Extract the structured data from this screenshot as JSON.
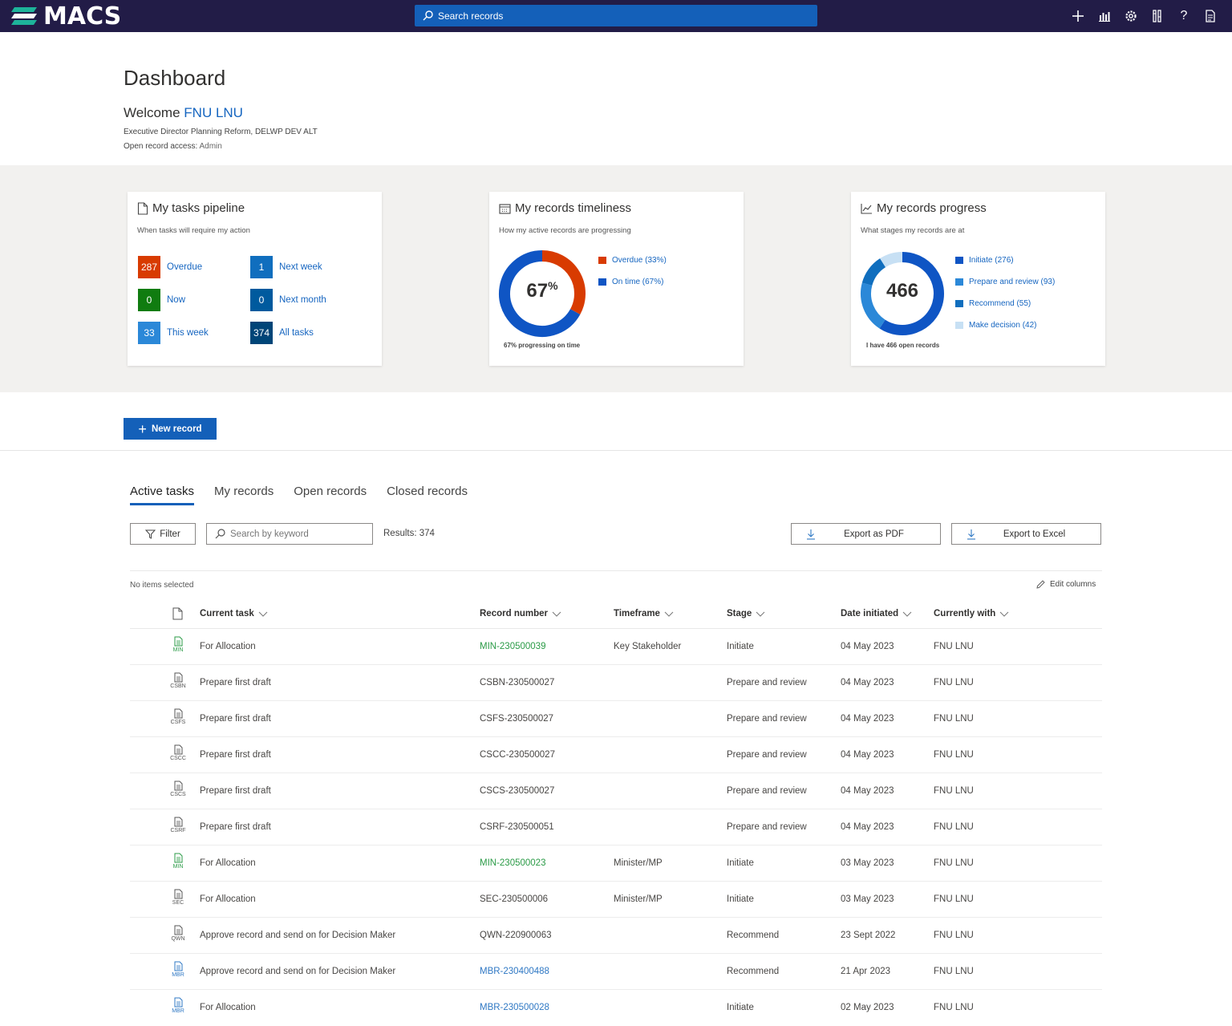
{
  "app": {
    "name": "MACS",
    "search_placeholder": "Search records"
  },
  "topbar_icons": [
    "plus-icon",
    "chart-icon",
    "gear-icon",
    "tools-icon",
    "help-icon",
    "report-icon"
  ],
  "header": {
    "title": "Dashboard",
    "welcome_prefix": "Welcome",
    "user_name": "FNU LNU",
    "role": "Executive Director Planning Reform, DELWP DEV ALT",
    "access_label": "Open record access:",
    "access_value": "Admin"
  },
  "cards": {
    "pipeline": {
      "title": "My tasks pipeline",
      "subtitle": "When tasks will require my action",
      "items": [
        {
          "count": "287",
          "label": "Overdue",
          "color": "#d83b01"
        },
        {
          "count": "0",
          "label": "Now",
          "color": "#107c10"
        },
        {
          "count": "33",
          "label": "This week",
          "color": "#2b88d8"
        },
        {
          "count": "1",
          "label": "Next week",
          "color": "#106ebe"
        },
        {
          "count": "0",
          "label": "Next month",
          "color": "#005a9e"
        },
        {
          "count": "374",
          "label": "All tasks",
          "color": "#004578"
        }
      ]
    },
    "timeliness": {
      "title": "My records timeliness",
      "subtitle": "How my active records are progressing",
      "center_value": "67",
      "center_unit": "%",
      "caption": "67% progressing on time",
      "legend": [
        {
          "label": "Overdue (33%)",
          "color": "#d83b01"
        },
        {
          "label": "On time (67%)",
          "color": "#0f55c4"
        }
      ]
    },
    "progress": {
      "title": "My records progress",
      "subtitle": "What stages my records are at",
      "center_value": "466",
      "caption": "I have 466 open records",
      "legend": [
        {
          "label": "Initiate (276)",
          "color": "#0f55c4"
        },
        {
          "label": "Prepare and review (93)",
          "color": "#2b88d8"
        },
        {
          "label": "Recommend (55)",
          "color": "#106ebe"
        },
        {
          "label": "Make decision (42)",
          "color": "#c7e0f4"
        }
      ]
    }
  },
  "chart_data": [
    {
      "type": "pie",
      "title": "My records timeliness",
      "categories": [
        "Overdue",
        "On time"
      ],
      "values": [
        33,
        67
      ]
    },
    {
      "type": "pie",
      "title": "My records progress",
      "categories": [
        "Initiate",
        "Prepare and review",
        "Recommend",
        "Make decision"
      ],
      "values": [
        276,
        93,
        55,
        42
      ]
    }
  ],
  "actions": {
    "new_record": "New record"
  },
  "tabs": [
    "Active tasks",
    "My records",
    "Open records",
    "Closed records"
  ],
  "toolbar": {
    "filter": "Filter",
    "keyword_placeholder": "Search by keyword",
    "results": "Results: 374",
    "export_pdf": "Export as PDF",
    "export_excel": "Export to Excel",
    "no_items_selected": "No items selected",
    "edit_columns": "Edit columns"
  },
  "table": {
    "columns": [
      "Current task",
      "Record number",
      "Timeframe",
      "Stage",
      "Date initiated",
      "Currently with"
    ],
    "rows": [
      {
        "code": "MIN",
        "task": "For Allocation",
        "record": "MIN-230500039",
        "timeframe": "Key Stakeholder",
        "stage": "Initiate",
        "date": "04 May 2023",
        "with": "FNU LNU",
        "tone": "green"
      },
      {
        "code": "CSBN",
        "task": "Prepare first draft",
        "record": "CSBN-230500027",
        "timeframe": "",
        "stage": "Prepare and review",
        "date": "04 May 2023",
        "with": "FNU LNU",
        "tone": "plain"
      },
      {
        "code": "CSFS",
        "task": "Prepare first draft",
        "record": "CSFS-230500027",
        "timeframe": "",
        "stage": "Prepare and review",
        "date": "04 May 2023",
        "with": "FNU LNU",
        "tone": "plain"
      },
      {
        "code": "CSCC",
        "task": "Prepare first draft",
        "record": "CSCC-230500027",
        "timeframe": "",
        "stage": "Prepare and review",
        "date": "04 May 2023",
        "with": "FNU LNU",
        "tone": "plain"
      },
      {
        "code": "CSCS",
        "task": "Prepare first draft",
        "record": "CSCS-230500027",
        "timeframe": "",
        "stage": "Prepare and review",
        "date": "04 May 2023",
        "with": "FNU LNU",
        "tone": "plain"
      },
      {
        "code": "CSRF",
        "task": "Prepare first draft",
        "record": "CSRF-230500051",
        "timeframe": "",
        "stage": "Prepare and review",
        "date": "04 May 2023",
        "with": "FNU LNU",
        "tone": "plain"
      },
      {
        "code": "MIN",
        "task": "For Allocation",
        "record": "MIN-230500023",
        "timeframe": "Minister/MP",
        "stage": "Initiate",
        "date": "03 May 2023",
        "with": "FNU LNU",
        "tone": "green"
      },
      {
        "code": "SEC",
        "task": "For Allocation",
        "record": "SEC-230500006",
        "timeframe": "Minister/MP",
        "stage": "Initiate",
        "date": "03 May 2023",
        "with": "FNU LNU",
        "tone": "plain"
      },
      {
        "code": "QWN",
        "task": "Approve record and send on for Decision Maker",
        "record": "QWN-220900063",
        "timeframe": "",
        "stage": "Recommend",
        "date": "23 Sept 2022",
        "with": "FNU LNU",
        "tone": "plain"
      },
      {
        "code": "MBR",
        "task": "Approve record and send on for Decision Maker",
        "record": "MBR-230400488",
        "timeframe": "",
        "stage": "Recommend",
        "date": "21 Apr 2023",
        "with": "FNU LNU",
        "tone": "blue"
      },
      {
        "code": "MBR",
        "task": "For Allocation",
        "record": "MBR-230500028",
        "timeframe": "",
        "stage": "Initiate",
        "date": "02 May 2023",
        "with": "FNU LNU",
        "tone": "blue"
      }
    ]
  }
}
